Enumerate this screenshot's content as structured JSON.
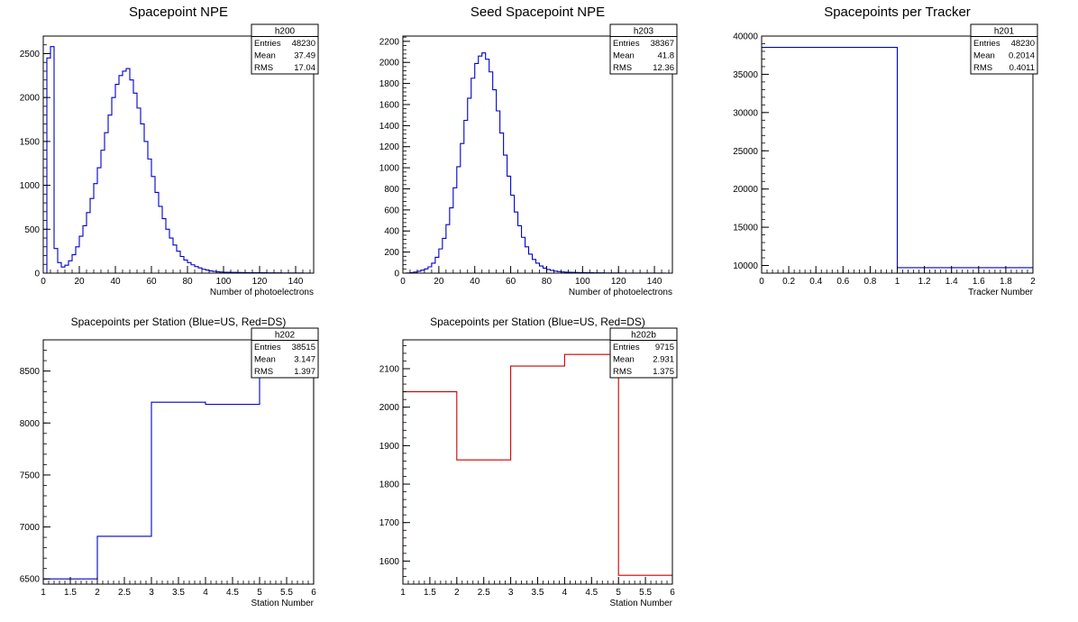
{
  "canvas": {
    "background": "#ffffff"
  },
  "chart_data": [
    {
      "id": "p1",
      "type": "histogram",
      "title": "Spacepoint NPE",
      "xlabel": "Number of photoelectrons",
      "ylabel": "",
      "xlim": [
        0,
        150
      ],
      "ylim": [
        0,
        2700
      ],
      "xticks": [
        0,
        20,
        40,
        60,
        80,
        100,
        120,
        140
      ],
      "xtick_labels": [
        "0",
        "20",
        "40",
        "60",
        "80",
        "100",
        "120",
        "140"
      ],
      "yticks": [
        0,
        500,
        1000,
        1500,
        2000,
        2500
      ],
      "ytick_labels": [
        "0",
        "500",
        "1000",
        "1500",
        "2000",
        "2500"
      ],
      "line_color": "#0000cc",
      "grid": false,
      "stats": {
        "name": "h200",
        "rows": [
          [
            "Entries",
            "48230"
          ],
          [
            "Mean",
            "37.49"
          ],
          [
            "RMS",
            "17.04"
          ]
        ]
      },
      "edges": [
        0,
        2,
        4,
        6,
        8,
        10,
        12,
        14,
        16,
        18,
        20,
        22,
        24,
        26,
        28,
        30,
        32,
        34,
        36,
        38,
        40,
        42,
        44,
        46,
        48,
        50,
        52,
        54,
        56,
        58,
        60,
        62,
        64,
        66,
        68,
        70,
        72,
        74,
        76,
        78,
        80,
        82,
        84,
        86,
        88,
        90,
        92,
        94,
        96,
        98,
        100,
        102,
        104,
        106,
        108,
        110,
        112,
        114,
        116,
        118,
        120,
        122,
        124,
        126,
        128,
        130,
        132,
        134,
        136,
        138,
        140,
        142,
        144,
        146,
        148,
        150
      ],
      "values": [
        0,
        2450,
        2580,
        280,
        120,
        70,
        90,
        140,
        210,
        300,
        420,
        540,
        690,
        850,
        1020,
        1200,
        1400,
        1600,
        1800,
        2000,
        2150,
        2250,
        2300,
        2330,
        2200,
        2050,
        1880,
        1700,
        1500,
        1300,
        1100,
        920,
        760,
        620,
        500,
        400,
        320,
        250,
        190,
        150,
        120,
        95,
        75,
        60,
        45,
        35,
        25,
        20,
        15,
        12,
        10,
        10,
        8,
        8,
        7,
        6,
        6,
        5,
        5,
        4,
        4,
        4,
        3,
        3,
        3,
        3,
        2,
        2,
        2,
        2,
        2,
        2,
        1,
        1,
        0
      ]
    },
    {
      "id": "p2",
      "type": "histogram",
      "title": "Seed Spacepoint NPE",
      "xlabel": "Number of photoelectrons",
      "ylabel": "",
      "xlim": [
        0,
        150
      ],
      "ylim": [
        0,
        2250
      ],
      "xticks": [
        0,
        20,
        40,
        60,
        80,
        100,
        120,
        140
      ],
      "xtick_labels": [
        "0",
        "20",
        "40",
        "60",
        "80",
        "100",
        "120",
        "140"
      ],
      "yticks": [
        0,
        200,
        400,
        600,
        800,
        1000,
        1200,
        1400,
        1600,
        1800,
        2000,
        2200
      ],
      "ytick_labels": [
        "0",
        "200",
        "400",
        "600",
        "800",
        "1000",
        "1200",
        "1400",
        "1600",
        "1800",
        "2000",
        "2200"
      ],
      "line_color": "#0000cc",
      "grid": false,
      "stats": {
        "name": "h203",
        "rows": [
          [
            "Entries",
            "38367"
          ],
          [
            "Mean",
            "41.8"
          ],
          [
            "RMS",
            "12.36"
          ]
        ]
      },
      "edges": [
        0,
        2,
        4,
        6,
        8,
        10,
        12,
        14,
        16,
        18,
        20,
        22,
        24,
        26,
        28,
        30,
        32,
        34,
        36,
        38,
        40,
        42,
        44,
        46,
        48,
        50,
        52,
        54,
        56,
        58,
        60,
        62,
        64,
        66,
        68,
        70,
        72,
        74,
        76,
        78,
        80,
        82,
        84,
        86,
        88,
        90,
        92,
        94,
        96,
        98,
        100,
        102,
        104,
        106,
        108,
        110,
        112,
        114,
        116,
        118,
        120,
        122,
        124,
        126,
        128,
        130,
        132,
        134,
        136,
        138,
        140,
        142,
        144,
        146,
        148,
        150
      ],
      "values": [
        0,
        2,
        5,
        10,
        18,
        28,
        40,
        60,
        95,
        150,
        230,
        330,
        460,
        620,
        810,
        1010,
        1230,
        1450,
        1660,
        1850,
        1990,
        2060,
        2090,
        2030,
        1910,
        1740,
        1540,
        1330,
        1120,
        920,
        740,
        580,
        450,
        340,
        250,
        180,
        130,
        95,
        68,
        48,
        35,
        26,
        19,
        14,
        11,
        9,
        8,
        7,
        6,
        5,
        5,
        4,
        4,
        3,
        3,
        3,
        2,
        2,
        2,
        2,
        2,
        1,
        1,
        1,
        1,
        1,
        1,
        1,
        1,
        1,
        1,
        1,
        1,
        0,
        0
      ]
    },
    {
      "id": "p3",
      "type": "histogram",
      "title": "Spacepoints per Tracker",
      "xlabel": "Tracker Number",
      "ylabel": "",
      "xlim": [
        0,
        2
      ],
      "ylim": [
        9000,
        40000
      ],
      "xticks": [
        0,
        0.2,
        0.4,
        0.6,
        0.8,
        1,
        1.2,
        1.4,
        1.6,
        1.8,
        2
      ],
      "xtick_labels": [
        "0",
        "0.2",
        "0.4",
        "0.6",
        "0.8",
        "1",
        "1.2",
        "1.4",
        "1.6",
        "1.8",
        "2"
      ],
      "yticks": [
        10000,
        15000,
        20000,
        25000,
        30000,
        35000,
        40000
      ],
      "ytick_labels": [
        "10000",
        "15000",
        "20000",
        "25000",
        "30000",
        "35000",
        "40000"
      ],
      "line_color": "#0000cc",
      "grid": false,
      "stats": {
        "name": "h201",
        "rows": [
          [
            "Entries",
            "48230"
          ],
          [
            "Mean",
            "0.2014"
          ],
          [
            "RMS",
            "0.4011"
          ]
        ]
      },
      "edges": [
        0,
        1,
        2
      ],
      "values": [
        38515,
        9715
      ]
    },
    {
      "id": "p4",
      "type": "histogram",
      "title": "Spacepoints per Station (Blue=US, Red=DS)",
      "xlabel": "Station Number",
      "ylabel": "",
      "xlim": [
        1,
        6
      ],
      "ylim": [
        6450,
        8800
      ],
      "xticks": [
        1,
        1.5,
        2,
        2.5,
        3,
        3.5,
        4,
        4.5,
        5,
        5.5,
        6
      ],
      "xtick_labels": [
        "1",
        "1.5",
        "2",
        "2.5",
        "3",
        "3.5",
        "4",
        "4.5",
        "5",
        "5.5",
        "6"
      ],
      "yticks": [
        6500,
        7000,
        7500,
        8000,
        8500
      ],
      "ytick_labels": [
        "6500",
        "7000",
        "7500",
        "8000",
        "8500"
      ],
      "line_color": "#0000cc",
      "grid": false,
      "stats": {
        "name": "h202",
        "rows": [
          [
            "Entries",
            "38515"
          ],
          [
            "Mean",
            "3.147"
          ],
          [
            "RMS",
            "1.397"
          ]
        ]
      },
      "edges": [
        1,
        2,
        3,
        4,
        5,
        6
      ],
      "values": [
        6500,
        6910,
        8200,
        8180,
        8710
      ]
    },
    {
      "id": "p5",
      "type": "histogram",
      "title": "Spacepoints per Station (Blue=US, Red=DS)",
      "xlabel": "Station Number",
      "ylabel": "",
      "xlim": [
        1,
        6
      ],
      "ylim": [
        1540,
        2175
      ],
      "xticks": [
        1,
        1.5,
        2,
        2.5,
        3,
        3.5,
        4,
        4.5,
        5,
        5.5,
        6
      ],
      "xtick_labels": [
        "1",
        "1.5",
        "2",
        "2.5",
        "3",
        "3.5",
        "4",
        "4.5",
        "5",
        "5.5",
        "6"
      ],
      "yticks": [
        1600,
        1700,
        1800,
        1900,
        2000,
        2100
      ],
      "ytick_labels": [
        "1600",
        "1700",
        "1800",
        "1900",
        "2000",
        "2100"
      ],
      "line_color": "#cc0000",
      "grid": false,
      "stats": {
        "name": "h202b",
        "rows": [
          [
            "Entries",
            "9715"
          ],
          [
            "Mean",
            "2.931"
          ],
          [
            "RMS",
            "1.375"
          ]
        ]
      },
      "edges": [
        1,
        2,
        3,
        4,
        5,
        6
      ],
      "values": [
        2040,
        1863,
        2107,
        2137,
        1563
      ]
    }
  ]
}
